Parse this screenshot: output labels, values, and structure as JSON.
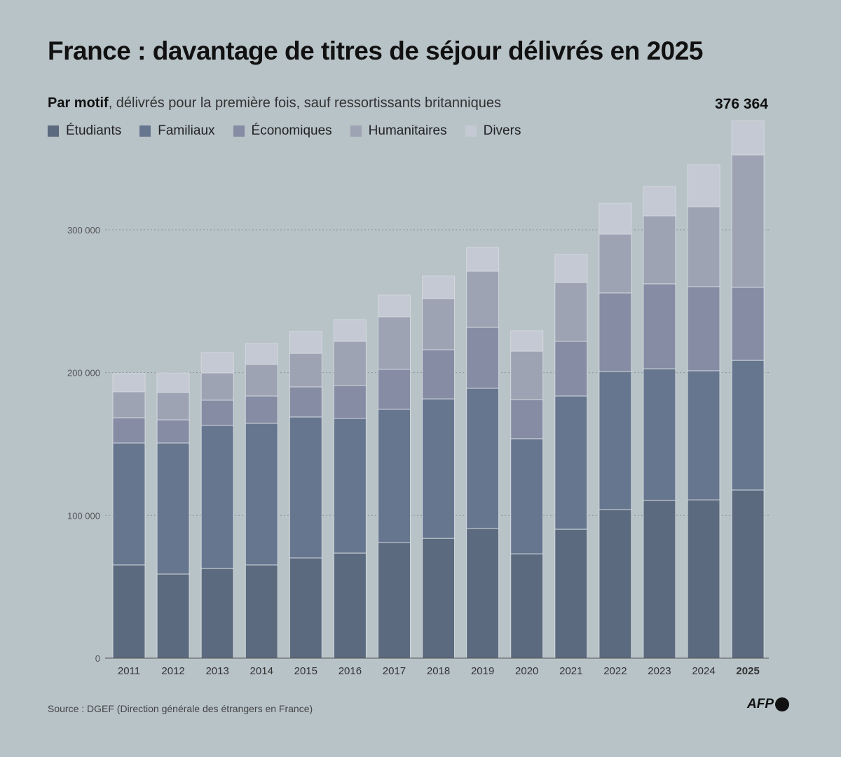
{
  "chart_data": {
    "type": "bar",
    "stacked": true,
    "title": "France : davantage de titres de séjour délivrés en 2025",
    "subtitle_bold": "Par motif",
    "subtitle_rest": ", délivrés pour la première fois, sauf ressortissants britanniques",
    "categories": [
      "2011",
      "2012",
      "2013",
      "2014",
      "2015",
      "2016",
      "2017",
      "2018",
      "2019",
      "2020",
      "2021",
      "2022",
      "2023",
      "2024",
      "2025"
    ],
    "series": [
      {
        "name": "Étudiants",
        "color": "#5b6a7e",
        "values": [
          65300,
          58900,
          62800,
          65300,
          70200,
          73600,
          81000,
          83900,
          90800,
          73100,
          90300,
          104100,
          110500,
          110900,
          117800
        ]
      },
      {
        "name": "Familiaux",
        "color": "#66768f",
        "values": [
          85400,
          91800,
          100200,
          99200,
          98700,
          94300,
          93300,
          97700,
          98200,
          80600,
          93300,
          96700,
          92200,
          90400,
          90800
        ]
      },
      {
        "name": "Économiques",
        "color": "#858ca4",
        "values": [
          17700,
          16200,
          17700,
          19100,
          21100,
          23100,
          28000,
          34400,
          42700,
          27400,
          38300,
          55000,
          59500,
          58900,
          51100
        ]
      },
      {
        "name": "Humanitaires",
        "color": "#9ea3b4",
        "values": [
          18200,
          19200,
          19100,
          22100,
          23500,
          30900,
          36800,
          35800,
          39300,
          33900,
          41200,
          41200,
          47600,
          56000,
          92800
        ]
      },
      {
        "name": "Divers",
        "color": "#c5c9d3",
        "values": [
          12800,
          13700,
          14200,
          14700,
          15300,
          15200,
          15200,
          15800,
          16700,
          14300,
          19700,
          21600,
          20600,
          29400,
          23900
        ]
      }
    ],
    "y_ticks": [
      0,
      100000,
      200000,
      300000
    ],
    "y_tick_labels": [
      "0",
      "100 000",
      "200 000",
      "300 000"
    ],
    "ylim": [
      0,
      380000
    ],
    "grid": "horizontal dotted",
    "legend_placement": "top-left",
    "annotation": "376 364",
    "highlight_category": "2025",
    "source": "Source : DGEF (Direction générale des étrangers en France)",
    "logo": "AFP",
    "background": "#b8c3c8"
  }
}
